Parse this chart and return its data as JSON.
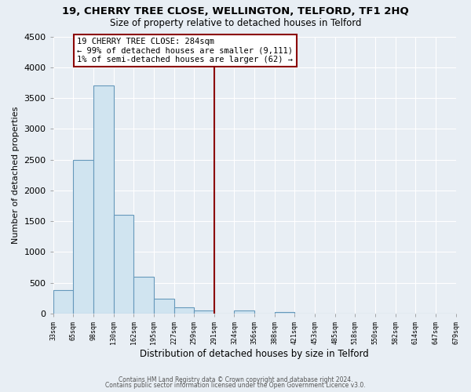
{
  "title": "19, CHERRY TREE CLOSE, WELLINGTON, TELFORD, TF1 2HQ",
  "subtitle": "Size of property relative to detached houses in Telford",
  "xlabel": "Distribution of detached houses by size in Telford",
  "ylabel": "Number of detached properties",
  "footer1": "Contains HM Land Registry data © Crown copyright and database right 2024.",
  "footer2": "Contains public sector information licensed under the Open Government Licence v3.0.",
  "annotation_title": "19 CHERRY TREE CLOSE: 284sqm",
  "annotation_line1": "← 99% of detached houses are smaller (9,111)",
  "annotation_line2": "1% of semi-detached houses are larger (62) →",
  "vline_x": 8,
  "bar_values": [
    375,
    2500,
    3700,
    1600,
    600,
    240,
    100,
    55,
    0,
    50,
    0,
    30,
    0,
    0,
    0,
    0,
    0,
    0,
    0,
    0
  ],
  "bar_color": "#d0e4f0",
  "bar_edge_color": "#6699bb",
  "tick_labels": [
    "33sqm",
    "65sqm",
    "98sqm",
    "130sqm",
    "162sqm",
    "195sqm",
    "227sqm",
    "259sqm",
    "291sqm",
    "324sqm",
    "356sqm",
    "388sqm",
    "421sqm",
    "453sqm",
    "485sqm",
    "518sqm",
    "550sqm",
    "582sqm",
    "614sqm",
    "647sqm",
    "679sqm"
  ],
  "ylim": [
    0,
    4500
  ],
  "yticks": [
    0,
    500,
    1000,
    1500,
    2000,
    2500,
    3000,
    3500,
    4000,
    4500
  ],
  "background_color": "#e8eef4",
  "plot_bg_color": "#e8eef4",
  "vline_color": "#8b0000",
  "annotation_box_facecolor": "#ffffff",
  "annotation_box_edgecolor": "#8b0000",
  "grid_color": "#ffffff",
  "title_fontsize": 9.5,
  "subtitle_fontsize": 8.5
}
